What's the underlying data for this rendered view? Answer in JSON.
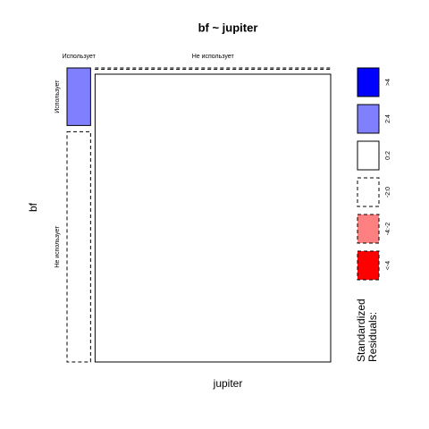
{
  "chart_data": {
    "type": "mosaic",
    "title": "bf ~ jupiter",
    "x_label": "jupiter",
    "y_label": "bf",
    "x_categories": [
      "Использует",
      "Не использует"
    ],
    "y_categories": [
      "Использует",
      "Не использует"
    ],
    "counts": [
      [
        2,
        8
      ],
      [
        0,
        100
      ]
    ],
    "residuals": [
      [
        3,
        -0.8
      ],
      [
        -0.4,
        0.1
      ]
    ],
    "breaks": [
      -4,
      -2,
      0,
      2,
      4
    ],
    "legend": {
      "title": [
        "Standardized",
        "Residuals:"
      ],
      "entries": [
        {
          "label": ">4",
          "color": "#0000ff",
          "dashed": false
        },
        {
          "label": "2:4",
          "color": "#8080ff",
          "dashed": false
        },
        {
          "label": "0:2",
          "color": "#ffffff",
          "dashed": false
        },
        {
          "label": "-2:0",
          "color": "#ffffff",
          "dashed": true
        },
        {
          "label": "-4:-2",
          "color": "#ff8080",
          "dashed": true
        },
        {
          "label": "<-4",
          "color": "#ff0000",
          "dashed": true
        }
      ]
    }
  }
}
